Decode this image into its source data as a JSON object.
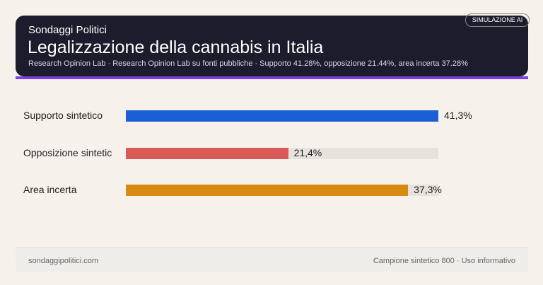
{
  "header": {
    "kicker": "Sondaggi Politici",
    "badge": "SIMULAZIONE AI"
  },
  "chart_data": {
    "type": "bar",
    "orientation": "horizontal",
    "title": "Legalizzazione della cannabis in Italia",
    "subtitle": "Research Opinion Lab · Research Opinion Lab su fonti pubbliche · Supporto 41.28%, opposizione 21.44%, area incerta 37.28%",
    "categories": [
      "Supporto sintetico",
      "Opposizione sintetic",
      "Area incerta"
    ],
    "values": [
      41.28,
      21.44,
      37.28
    ],
    "labels": [
      "41,3%",
      "21,4%",
      "37,3%"
    ],
    "colors": [
      "#1a5fd6",
      "#d95a57",
      "#d68a10"
    ],
    "xlim": [
      0,
      41.28
    ],
    "grid": false
  },
  "footer": {
    "left": "sondaggipolitici.com",
    "right": "Campione sintetico 800 · Uso informativo"
  }
}
